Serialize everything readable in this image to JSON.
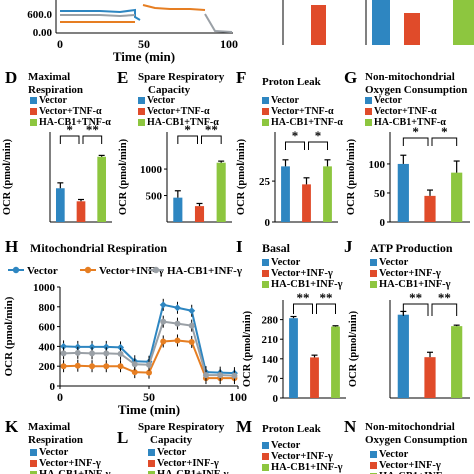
{
  "colors": {
    "vector": "#2e86c1",
    "tnf": "#e04b2a",
    "hacb1": "#8dc63f",
    "hacb1_line": "#9aa0a6",
    "inf": "#e67e22"
  },
  "strip": {
    "y_ticks": [
      "600.0",
      "0.00"
    ],
    "x_ticks": [
      "0",
      "50",
      "100"
    ],
    "xlabel": "Time (min)",
    "mid_ticks": [
      "0",
      "50",
      "100"
    ]
  },
  "panels": {
    "D": {
      "letter": "D",
      "title": [
        "Maximal",
        "Respiration"
      ]
    },
    "E": {
      "letter": "E",
      "title": [
        "Spare Respiratory",
        "Capacity"
      ]
    },
    "F": {
      "letter": "F",
      "title": [
        "Proton Leak"
      ]
    },
    "G": {
      "letter": "G",
      "title": [
        "Non-mitochondrial",
        "Oxygen Consumption"
      ]
    },
    "H": {
      "letter": "H",
      "title": [
        "Mitochondrial Respiration"
      ]
    },
    "I": {
      "letter": "I",
      "title": [
        "Basal"
      ]
    },
    "J": {
      "letter": "J",
      "title": [
        "ATP Production"
      ]
    },
    "K": {
      "letter": "K",
      "title": [
        "Maximal",
        "Respiration"
      ]
    },
    "L": {
      "letter": "L",
      "title": [
        "Spare Respiratory",
        "Capacity"
      ]
    },
    "M": {
      "letter": "M",
      "title": [
        "Proton Leak"
      ]
    },
    "N": {
      "letter": "N",
      "title": [
        "Non-mitochondrial",
        "Oxygen Consumption"
      ]
    }
  },
  "legend_tnf": [
    "Vector",
    "Vector+TNF-α",
    "HA-CB1+TNF-α"
  ],
  "legend_inf": [
    "Vector",
    "Vector+INF-γ",
    "HA-CB1+INF-γ"
  ],
  "ylabel": "OCR (pmol/min)",
  "sig": {
    "one": "*",
    "two": "**"
  },
  "chart_data": [
    {
      "panel": "D",
      "type": "bar",
      "categories": [
        "Vector",
        "Vector+TNF-α",
        "HA-CB1+TNF-α"
      ],
      "values": [
        750,
        460,
        1450
      ],
      "errors": [
        120,
        40,
        30
      ],
      "ylabel": "OCR (pmol/min)",
      "ylim": [
        0,
        2000
      ],
      "significance": [
        "*",
        "**"
      ]
    },
    {
      "panel": "E",
      "type": "bar",
      "categories": [
        "Vector",
        "Vector+TNF-α",
        "HA-CB1+TNF-α"
      ],
      "values": [
        460,
        300,
        1120
      ],
      "errors": [
        130,
        50,
        30
      ],
      "ylabel": "OCR (pmol/min)",
      "ylim": [
        0,
        1700
      ],
      "yticks": [
        500,
        1000
      ],
      "significance": [
        "*",
        "**"
      ]
    },
    {
      "panel": "F",
      "type": "bar",
      "categories": [
        "Vector",
        "Vector+TNF-α",
        "HA-CB1+TNF-α"
      ],
      "values": [
        34,
        23,
        34
      ],
      "errors": [
        4,
        4,
        4
      ],
      "ylabel": "OCR (pmol/min)",
      "ylim": [
        0,
        55
      ],
      "yticks": [
        0,
        25.0
      ],
      "significance": [
        "*",
        "*"
      ]
    },
    {
      "panel": "G",
      "type": "bar",
      "categories": [
        "Vector",
        "Vector+TNF-α",
        "HA-CB1+TNF-α"
      ],
      "values": [
        100,
        45,
        85
      ],
      "errors": [
        15,
        10,
        20
      ],
      "ylabel": "OCR (pmol/min)",
      "ylim": [
        0,
        155
      ],
      "yticks": [
        0,
        50,
        100
      ],
      "significance": [
        "*",
        "*"
      ]
    },
    {
      "panel": "H",
      "type": "line",
      "xlabel": "Time (min)",
      "ylabel": "OCR (pmol/min)",
      "xlim": [
        0,
        100
      ],
      "ylim": [
        0,
        1000
      ],
      "xticks": [
        0,
        50,
        100
      ],
      "yticks": [
        0,
        200,
        400,
        600,
        800,
        1000
      ],
      "x": [
        2,
        10,
        18,
        26,
        34,
        42,
        50,
        58,
        66,
        74,
        82,
        90,
        98
      ],
      "series": [
        {
          "name": "Vector",
          "values": [
            400,
            395,
            395,
            395,
            390,
            250,
            245,
            820,
            790,
            760,
            140,
            135,
            130
          ]
        },
        {
          "name": "Vector+INF-γ",
          "values": [
            200,
            205,
            200,
            200,
            200,
            140,
            135,
            450,
            460,
            445,
            80,
            80,
            80
          ]
        },
        {
          "name": "HA-CB1+INF-γ",
          "values": [
            330,
            335,
            330,
            330,
            325,
            220,
            215,
            650,
            630,
            610,
            110,
            110,
            105
          ]
        }
      ]
    },
    {
      "panel": "I",
      "type": "bar",
      "categories": [
        "Vector",
        "Vector+INF-γ",
        "HA-CB1+INF-γ"
      ],
      "values": [
        285,
        145,
        255
      ],
      "errors": [
        6,
        8,
        3
      ],
      "ylabel": "OCR (pmol/min)",
      "ylim": [
        0,
        350
      ],
      "yticks": [
        0,
        70,
        140,
        210,
        280
      ],
      "significance": [
        "**",
        "**"
      ]
    },
    {
      "panel": "J",
      "type": "bar",
      "categories": [
        "Vector",
        "Vector+INF-γ",
        "HA-CB1+INF-γ"
      ],
      "values": [
        255,
        125,
        220
      ],
      "errors": [
        10,
        15,
        3
      ],
      "ylabel": "OCR (pmol/min)",
      "ylim": [
        0,
        300
      ],
      "significance": [
        "**",
        "**"
      ]
    }
  ]
}
